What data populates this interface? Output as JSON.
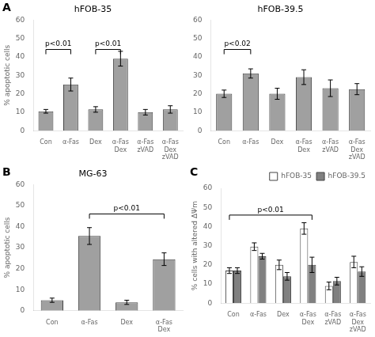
{
  "chart_data": [
    {
      "type": "bar",
      "title": "hFOB-35",
      "categories": [
        "Con",
        "α-Fas",
        "Dex",
        "α-Fas\nDex",
        "α-Fas\nzVAD",
        "α-Fas\nDex\nzVAD"
      ],
      "values": [
        10.5,
        25.0,
        11.5,
        39.0,
        10.0,
        11.5
      ],
      "errors": [
        1.0,
        3.5,
        1.5,
        4.0,
        1.5,
        2.0
      ],
      "color": "#a0a0a0",
      "ylabel": "% apoptotic cells",
      "ylim": [
        0,
        60
      ],
      "yticks": [
        0,
        10,
        20,
        30,
        40,
        50,
        60
      ],
      "grid": false,
      "annotations": [
        {
          "text": "A"
        },
        {
          "text": "p<0.01",
          "x1": "Con",
          "x2": "α-Fas",
          "y": 44
        },
        {
          "text": "p<0.01",
          "x1": "Dex",
          "x2": "α-Fas\nDex",
          "y": 44
        }
      ]
    },
    {
      "type": "bar",
      "title": "hFOB-39.5",
      "categories": [
        "Con",
        "α-Fas",
        "Dex",
        "α-Fas\nDex",
        "α-Fas\nzVAD",
        "α-Fas\nDex\nzVAD"
      ],
      "values": [
        20.0,
        31.0,
        20.0,
        29.0,
        23.0,
        22.5
      ],
      "errors": [
        2.0,
        2.5,
        3.0,
        4.0,
        4.5,
        3.0
      ],
      "color": "#a0a0a0",
      "ylim": [
        0,
        60
      ],
      "yticks": [
        0,
        10,
        20,
        30,
        40,
        50,
        60
      ],
      "grid": false,
      "annotations": [
        {
          "text": "p<0.02",
          "x1": "Con",
          "x2": "α-Fas",
          "y": 44
        }
      ]
    },
    {
      "type": "bar",
      "title": "MG-63",
      "categories": [
        "Con",
        "α-Fas",
        "Dex",
        "α-Fas\nDex"
      ],
      "values": [
        5.0,
        35.5,
        4.0,
        24.5
      ],
      "errors": [
        1.0,
        4.0,
        1.0,
        3.0
      ],
      "color": "#a0a0a0",
      "ylabel": "% apoptotic cells",
      "ylim": [
        0,
        60
      ],
      "yticks": [
        0,
        10,
        20,
        30,
        40,
        50,
        60
      ],
      "grid": false,
      "annotations": [
        {
          "text": "B"
        },
        {
          "text": "p<0.01",
          "x1": "α-Fas",
          "x2": "α-Fas\nDex",
          "y": 46
        }
      ]
    },
    {
      "type": "bar",
      "categories": [
        "Con",
        "α-Fas",
        "Dex",
        "α-Fas\nDex",
        "α-Fas\nzVAD",
        "α-Fas\nDex\nzVAD"
      ],
      "series": [
        {
          "name": "hFOB-35",
          "color": "#ffffff",
          "values": [
            17.0,
            29.5,
            20.0,
            39.0,
            9.0,
            21.5
          ],
          "errors": [
            1.5,
            2.0,
            2.5,
            3.0,
            2.0,
            3.0
          ]
        },
        {
          "name": "hFOB-39.5",
          "color": "#808080",
          "values": [
            17.0,
            24.5,
            14.0,
            20.0,
            11.5,
            16.5
          ],
          "errors": [
            1.5,
            1.5,
            2.0,
            4.0,
            2.0,
            2.5
          ]
        }
      ],
      "ylabel": "% cells with altered ΔΨm",
      "ylim": [
        0,
        60
      ],
      "yticks": [
        0,
        10,
        20,
        30,
        40,
        50,
        60
      ],
      "grid": false,
      "legend": "upper right",
      "annotations": [
        {
          "text": "C"
        },
        {
          "text": "p<0.01",
          "x1": "Con",
          "x2": "α-Fas\nDex",
          "y": 46
        }
      ]
    }
  ]
}
